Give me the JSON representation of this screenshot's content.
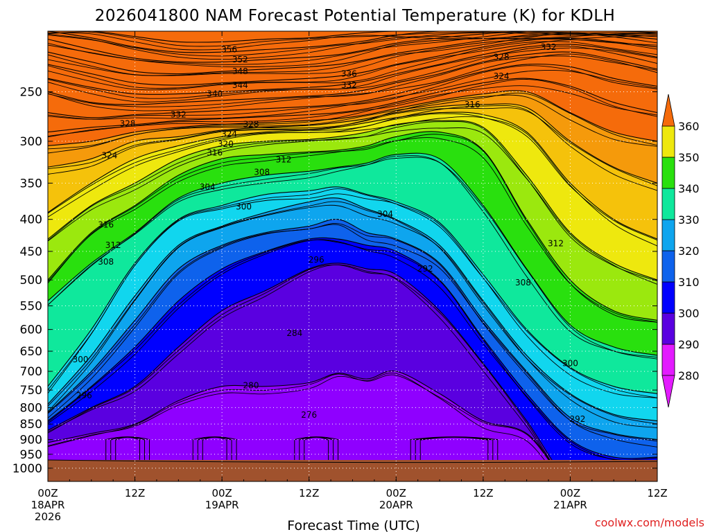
{
  "chart_data": {
    "type": "heatmap",
    "title": "2026041800 NAM Forecast Potential Temperature (K) for KDLH",
    "xlabel": "Forecast Time (UTC)",
    "ylabel": "",
    "credit": "coolwx.com/models",
    "x_ticks": [
      {
        "hours": 0,
        "lines": [
          "00Z",
          "18APR",
          "2026"
        ]
      },
      {
        "hours": 12,
        "lines": [
          "12Z"
        ]
      },
      {
        "hours": 24,
        "lines": [
          "00Z",
          "19APR"
        ]
      },
      {
        "hours": 36,
        "lines": [
          "12Z"
        ]
      },
      {
        "hours": 48,
        "lines": [
          "00Z",
          "20APR"
        ]
      },
      {
        "hours": 60,
        "lines": [
          "12Z"
        ]
      },
      {
        "hours": 72,
        "lines": [
          "00Z",
          "21APR"
        ]
      },
      {
        "hours": 84,
        "lines": [
          "12Z"
        ]
      }
    ],
    "xlim_hours": [
      0,
      84
    ],
    "y_ticks": [
      250,
      300,
      350,
      400,
      450,
      500,
      550,
      600,
      650,
      700,
      750,
      800,
      850,
      900,
      950,
      1000
    ],
    "ylim_hpa": [
      1050,
      200
    ],
    "y_scale": "log-pressure",
    "grid": true,
    "colorbar": {
      "levels": [
        280,
        290,
        300,
        310,
        320,
        330,
        340,
        350,
        360
      ],
      "colors": [
        "#e31bff",
        "#8f00ff",
        "#5a00e0",
        "#0000ff",
        "#0e62ec",
        "#0ea5ee",
        "#11d6ee",
        "#0fe89c",
        "#29e00e",
        "#9be80e",
        "#eee80e",
        "#f5c20b",
        "#f59a0b",
        "#f56b0b"
      ],
      "placement": "right"
    },
    "contour_interval": 2,
    "surface_color": "#a0522d",
    "profile_times_hours": [
      0,
      6,
      12,
      18,
      24,
      30,
      36,
      40,
      44,
      48,
      54,
      60,
      66,
      72,
      78,
      84
    ],
    "profile_thresholds": [
      272,
      276,
      280,
      284,
      288,
      292,
      296,
      300,
      304,
      308,
      312,
      316,
      320,
      324,
      328,
      332,
      336,
      340,
      344,
      348,
      352,
      356,
      360
    ],
    "profile_pressures_hpa": [
      [
        1050,
        1050,
        1050,
        1050,
        1050,
        1050,
        1050,
        1050,
        1050,
        1050,
        1050,
        1050,
        1050,
        1050,
        1050,
        1050
      ],
      [
        1050,
        1050,
        1050,
        1050,
        1050,
        1050,
        1050,
        1050,
        1050,
        1050,
        1050,
        1050,
        1050,
        1050,
        1050,
        1050
      ],
      [
        910,
        880,
        850,
        780,
        740,
        740,
        730,
        705,
        720,
        700,
        760,
        840,
        880,
        1050,
        1050,
        1050
      ],
      [
        870,
        800,
        740,
        640,
        560,
        520,
        480,
        470,
        480,
        490,
        560,
        680,
        840,
        1050,
        1050,
        1050
      ],
      [
        840,
        740,
        640,
        540,
        480,
        450,
        430,
        430,
        440,
        450,
        500,
        620,
        760,
        900,
        960,
        960
      ],
      [
        815,
        700,
        580,
        480,
        440,
        420,
        410,
        400,
        420,
        430,
        470,
        580,
        700,
        830,
        880,
        900
      ],
      [
        790,
        660,
        530,
        440,
        410,
        390,
        375,
        370,
        385,
        400,
        440,
        540,
        660,
        760,
        820,
        840
      ],
      [
        740,
        600,
        470,
        400,
        380,
        365,
        360,
        355,
        365,
        375,
        405,
        490,
        600,
        690,
        740,
        760
      ],
      [
        540,
        470,
        420,
        370,
        350,
        340,
        335,
        330,
        325,
        315,
        320,
        380,
        480,
        590,
        640,
        660
      ],
      [
        500,
        420,
        380,
        340,
        320,
        315,
        312,
        310,
        305,
        295,
        290,
        310,
        400,
        500,
        560,
        580
      ],
      [
        430,
        380,
        350,
        320,
        305,
        300,
        298,
        295,
        290,
        282,
        278,
        285,
        340,
        420,
        470,
        500
      ],
      [
        390,
        350,
        320,
        305,
        295,
        290,
        288,
        285,
        280,
        275,
        270,
        272,
        290,
        350,
        400,
        430
      ],
      [
        330,
        320,
        300,
        295,
        288,
        285,
        283,
        280,
        276,
        270,
        264,
        262,
        265,
        300,
        330,
        350
      ],
      [
        305,
        300,
        290,
        285,
        282,
        280,
        278,
        276,
        272,
        266,
        258,
        252,
        250,
        270,
        290,
        300
      ],
      [
        290,
        285,
        282,
        278,
        276,
        274,
        272,
        270,
        266,
        260,
        250,
        242,
        238,
        245,
        260,
        270
      ],
      [
        270,
        275,
        272,
        270,
        268,
        266,
        264,
        262,
        258,
        252,
        242,
        232,
        226,
        228,
        238,
        245
      ],
      [
        250,
        260,
        262,
        260,
        258,
        256,
        254,
        252,
        248,
        242,
        234,
        224,
        218,
        216,
        222,
        230
      ],
      [
        238,
        246,
        252,
        252,
        250,
        248,
        246,
        244,
        240,
        234,
        226,
        218,
        212,
        210,
        214,
        220
      ],
      [
        226,
        234,
        242,
        244,
        242,
        240,
        238,
        236,
        232,
        226,
        219,
        212,
        207,
        205,
        208,
        212
      ],
      [
        216,
        224,
        232,
        234,
        232,
        230,
        228,
        226,
        222,
        217,
        212,
        207,
        203,
        201,
        203,
        206
      ],
      [
        206,
        214,
        221,
        224,
        224,
        222,
        220,
        218,
        214,
        209,
        205,
        202,
        200,
        200,
        200,
        201
      ],
      [
        200,
        205,
        212,
        216,
        216,
        214,
        212,
        210,
        207,
        203,
        200,
        200,
        200,
        200,
        200,
        200
      ],
      [
        200,
        200,
        204,
        208,
        208,
        206,
        205,
        203,
        201,
        200,
        200,
        200,
        200,
        200,
        200,
        200
      ]
    ],
    "contour_labels": [
      {
        "text": "356",
        "hours": 25,
        "hpa": 214
      },
      {
        "text": "352",
        "hours": 26.5,
        "hpa": 222
      },
      {
        "text": "348",
        "hours": 26.5,
        "hpa": 232
      },
      {
        "text": "344",
        "hours": 26.5,
        "hpa": 244
      },
      {
        "text": "340",
        "hours": 23,
        "hpa": 252
      },
      {
        "text": "336",
        "hours": 41.5,
        "hpa": 234
      },
      {
        "text": "332",
        "hours": 41.5,
        "hpa": 244
      },
      {
        "text": "332",
        "hours": 18,
        "hpa": 272
      },
      {
        "text": "328",
        "hours": 28,
        "hpa": 282
      },
      {
        "text": "324",
        "hours": 25,
        "hpa": 292
      },
      {
        "text": "320",
        "hours": 24.5,
        "hpa": 303
      },
      {
        "text": "316",
        "hours": 23,
        "hpa": 313
      },
      {
        "text": "312",
        "hours": 32.5,
        "hpa": 321
      },
      {
        "text": "308",
        "hours": 29.5,
        "hpa": 336
      },
      {
        "text": "304",
        "hours": 22,
        "hpa": 355
      },
      {
        "text": "300",
        "hours": 27,
        "hpa": 382
      },
      {
        "text": "304",
        "hours": 46.5,
        "hpa": 392
      },
      {
        "text": "296",
        "hours": 37,
        "hpa": 464
      },
      {
        "text": "292",
        "hours": 52,
        "hpa": 480
      },
      {
        "text": "316",
        "hours": 8,
        "hpa": 408
      },
      {
        "text": "312",
        "hours": 9,
        "hpa": 440
      },
      {
        "text": "308",
        "hours": 8,
        "hpa": 468
      },
      {
        "text": "316",
        "hours": 58.5,
        "hpa": 262
      },
      {
        "text": "328",
        "hours": 62.5,
        "hpa": 220
      },
      {
        "text": "324",
        "hours": 62.5,
        "hpa": 236
      },
      {
        "text": "332",
        "hours": 69,
        "hpa": 212
      },
      {
        "text": "328",
        "hours": 11,
        "hpa": 281
      },
      {
        "text": "324",
        "hours": 8.5,
        "hpa": 316
      },
      {
        "text": "312",
        "hours": 70,
        "hpa": 437
      },
      {
        "text": "308",
        "hours": 65.5,
        "hpa": 505
      },
      {
        "text": "300",
        "hours": 4.5,
        "hpa": 670
      },
      {
        "text": "300",
        "hours": 72,
        "hpa": 680
      },
      {
        "text": "296",
        "hours": 5,
        "hpa": 765
      },
      {
        "text": "292",
        "hours": 73,
        "hpa": 835
      },
      {
        "text": "284",
        "hours": 34,
        "hpa": 608
      },
      {
        "text": "280",
        "hours": 28,
        "hpa": 737
      },
      {
        "text": "276",
        "hours": 36,
        "hpa": 822
      }
    ]
  }
}
